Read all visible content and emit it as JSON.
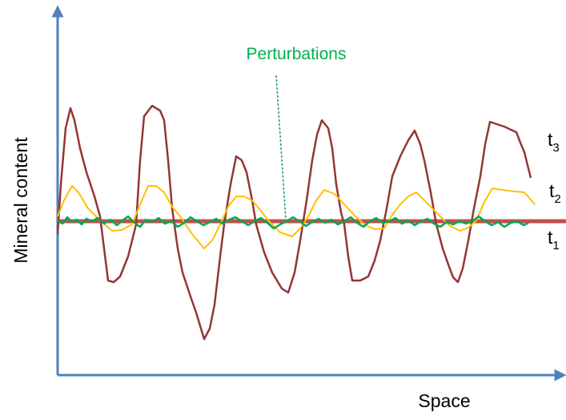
{
  "annotation": "Perturbations",
  "y_axis_label": "Mineral content",
  "x_axis_label": "Space",
  "curve_labels": [
    {
      "name": "t",
      "sub": "3"
    },
    {
      "name": "t",
      "sub": "2"
    },
    {
      "name": "t",
      "sub": "1"
    }
  ]
}
